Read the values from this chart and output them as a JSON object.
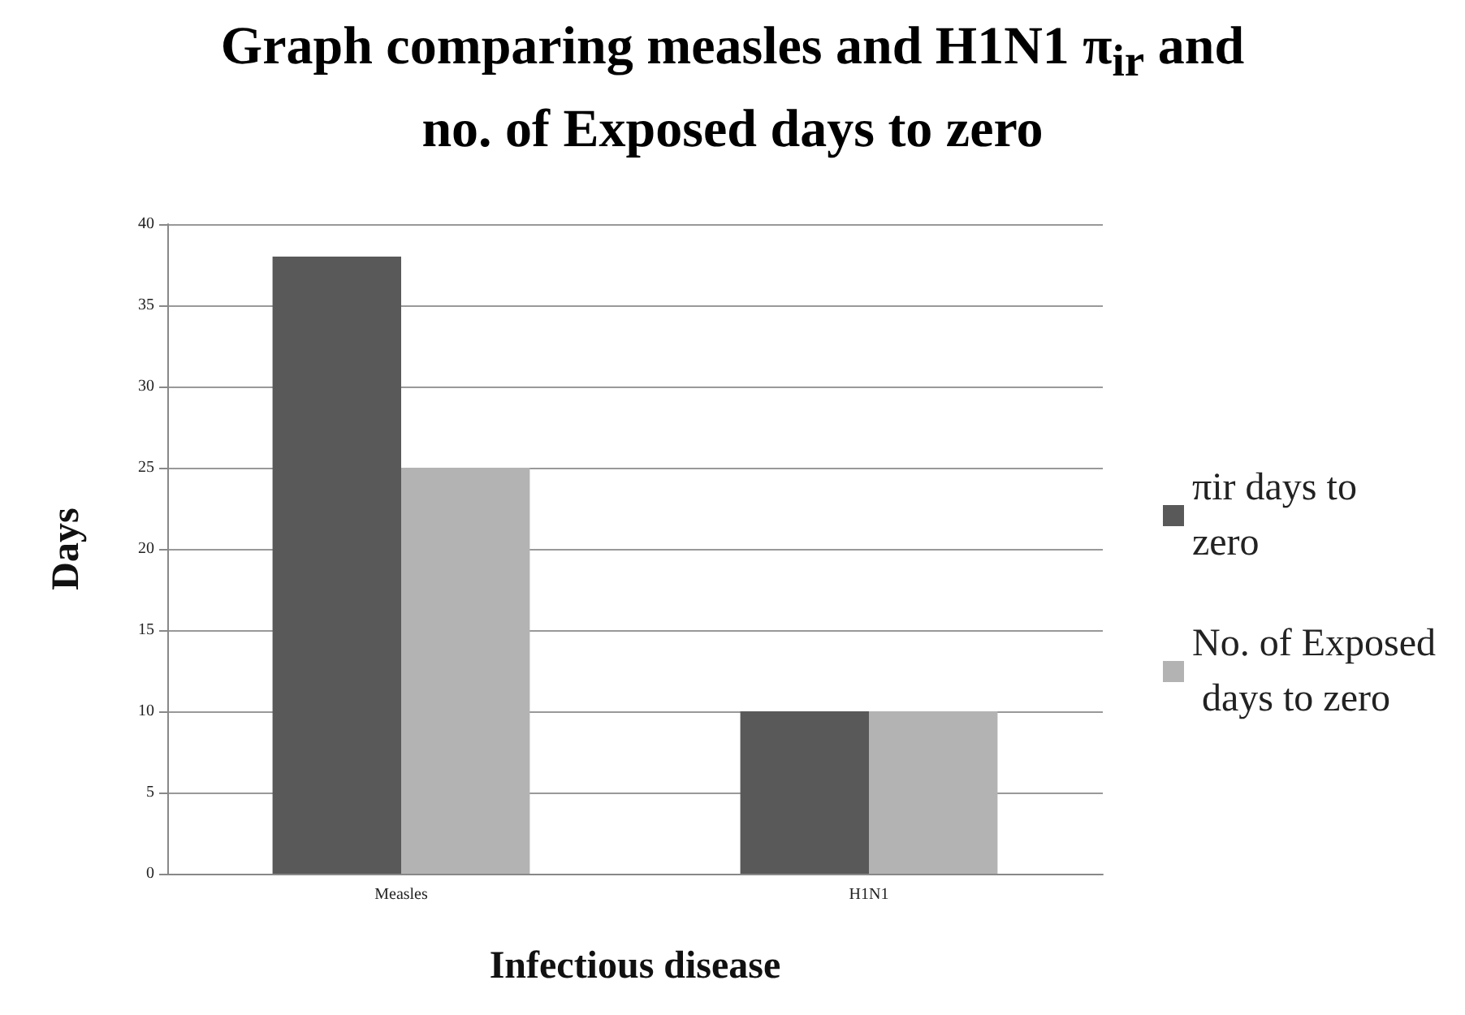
{
  "chart_data": {
    "type": "bar",
    "title": "Graph comparing measles and H1N1 π$_{ir}$  and no. of Exposed days to zero",
    "xlabel": "Infectious disease",
    "ylabel": "Days",
    "categories": [
      "Measles",
      "H1N1"
    ],
    "series": [
      {
        "name": "πir days to zero",
        "color": "#595959",
        "values": [
          38,
          10
        ]
      },
      {
        "name": "No. of Exposed days to zero",
        "color": "#b3b3b3",
        "values": [
          25,
          10
        ]
      }
    ],
    "ylim": [
      0,
      40
    ],
    "yticks": [
      0,
      5,
      10,
      15,
      20,
      25,
      30,
      35,
      40
    ],
    "grid": "y",
    "legend": "right"
  }
}
